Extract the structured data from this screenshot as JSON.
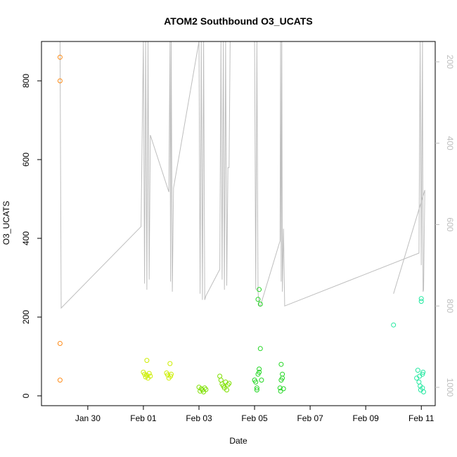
{
  "chart_data": {
    "type": "scatter",
    "title": "ATOM2 Southbound O3_UCATS",
    "xlabel": "Date",
    "ylabel": "O3_UCATS",
    "xlim": [
      "2017-01-28T08:00",
      "2017-02-11T12:00"
    ],
    "ylim": [
      -25,
      900
    ],
    "x_ticks": [
      {
        "date": "2017-01-30",
        "label": "Jan 30"
      },
      {
        "date": "2017-02-01",
        "label": "Feb 01"
      },
      {
        "date": "2017-02-03",
        "label": "Feb 03"
      },
      {
        "date": "2017-02-05",
        "label": "Feb 05"
      },
      {
        "date": "2017-02-07",
        "label": "Feb 07"
      },
      {
        "date": "2017-02-09",
        "label": "Feb 09"
      },
      {
        "date": "2017-02-11",
        "label": "Feb 11"
      }
    ],
    "y_ticks": [
      0,
      200,
      400,
      600,
      800
    ],
    "right_axis": {
      "ticks": [
        200,
        400,
        600,
        800,
        1000
      ],
      "reversed": true,
      "color": "#bebebe",
      "range": [
        1045,
        150
      ]
    },
    "grid": false,
    "series": [
      {
        "color": "#ff8c1a",
        "points": [
          [
            "2017-01-29T00:00",
            860
          ],
          [
            "2017-01-29T00:00",
            800
          ],
          [
            "2017-01-29T00:00",
            133
          ],
          [
            "2017-01-29T00:00",
            40
          ]
        ]
      },
      {
        "color": "#ccee00",
        "points": [
          [
            "2017-02-01T00:00",
            60
          ],
          [
            "2017-02-01T01:00",
            55
          ],
          [
            "2017-02-01T02:00",
            48
          ],
          [
            "2017-02-01T03:00",
            90
          ],
          [
            "2017-02-01T03:00",
            52
          ],
          [
            "2017-02-01T04:00",
            45
          ],
          [
            "2017-02-01T05:00",
            57
          ],
          [
            "2017-02-01T06:00",
            50
          ],
          [
            "2017-02-01T20:00",
            58
          ],
          [
            "2017-02-01T21:00",
            53
          ],
          [
            "2017-02-01T22:00",
            45
          ],
          [
            "2017-02-01T23:00",
            82
          ],
          [
            "2017-02-01T23:30",
            50
          ],
          [
            "2017-02-02T00:00",
            55
          ]
        ]
      },
      {
        "color": "#7ee000",
        "points": [
          [
            "2017-02-03T00:00",
            22
          ],
          [
            "2017-02-03T01:00",
            12
          ],
          [
            "2017-02-03T02:00",
            18
          ],
          [
            "2017-02-03T03:00",
            15
          ],
          [
            "2017-02-03T04:00",
            10
          ],
          [
            "2017-02-03T05:00",
            20
          ],
          [
            "2017-02-03T06:00",
            16
          ],
          [
            "2017-02-03T18:00",
            50
          ],
          [
            "2017-02-03T19:00",
            40
          ],
          [
            "2017-02-03T20:00",
            30
          ],
          [
            "2017-02-03T21:00",
            25
          ],
          [
            "2017-02-03T22:00",
            20
          ],
          [
            "2017-02-03T23:00",
            35
          ],
          [
            "2017-02-04T00:00",
            15
          ],
          [
            "2017-02-04T01:00",
            28
          ],
          [
            "2017-02-04T02:00",
            32
          ]
        ]
      },
      {
        "color": "#22d622",
        "points": [
          [
            "2017-02-05T00:00",
            40
          ],
          [
            "2017-02-05T01:00",
            35
          ],
          [
            "2017-02-05T02:00",
            20
          ],
          [
            "2017-02-05T03:00",
            55
          ],
          [
            "2017-02-05T04:00",
            60
          ],
          [
            "2017-02-05T04:00",
            270
          ],
          [
            "2017-02-05T03:00",
            245
          ],
          [
            "2017-02-05T05:00",
            233
          ],
          [
            "2017-02-05T05:00",
            120
          ],
          [
            "2017-02-05T04:00",
            68
          ],
          [
            "2017-02-05T06:00",
            40
          ],
          [
            "2017-02-05T02:00",
            15
          ],
          [
            "2017-02-05T22:00",
            20
          ],
          [
            "2017-02-05T23:00",
            40
          ],
          [
            "2017-02-05T23:00",
            80
          ],
          [
            "2017-02-06T00:00",
            55
          ],
          [
            "2017-02-06T00:00",
            45
          ],
          [
            "2017-02-06T01:00",
            18
          ],
          [
            "2017-02-05T22:30",
            12
          ]
        ]
      },
      {
        "color": "#22e8a0",
        "points": [
          [
            "2017-02-10T00:00",
            180
          ],
          [
            "2017-02-10T20:00",
            45
          ],
          [
            "2017-02-10T21:00",
            65
          ],
          [
            "2017-02-10T22:00",
            35
          ],
          [
            "2017-02-10T22:30",
            50
          ],
          [
            "2017-02-10T23:00",
            25
          ],
          [
            "2017-02-11T00:00",
            240
          ],
          [
            "2017-02-11T00:00",
            247
          ],
          [
            "2017-02-11T01:00",
            55
          ],
          [
            "2017-02-11T01:00",
            20
          ],
          [
            "2017-02-11T01:30",
            60
          ],
          [
            "2017-02-11T02:00",
            10
          ],
          [
            "2017-02-10T23:30",
            15
          ]
        ]
      }
    ],
    "altitude_trace": {
      "color": "#bebebe",
      "points": [
        [
          "2017-01-29T00:00",
          150
        ],
        [
          "2017-01-29T01:00",
          805
        ],
        [
          "2017-01-31T22:00",
          605
        ],
        [
          "2017-02-01T00:00",
          150
        ],
        [
          "2017-02-01T01:00",
          745
        ],
        [
          "2017-02-01T02:00",
          150
        ],
        [
          "2017-02-01T03:00",
          760
        ],
        [
          "2017-02-01T04:00",
          150
        ],
        [
          "2017-02-01T05:00",
          735
        ],
        [
          "2017-02-01T06:00",
          380
        ],
        [
          "2017-02-01T22:00",
          520
        ],
        [
          "2017-02-01T23:00",
          150
        ],
        [
          "2017-02-01T23:30",
          740
        ],
        [
          "2017-02-02T00:00",
          150
        ],
        [
          "2017-02-02T01:00",
          765
        ],
        [
          "2017-02-02T02:00",
          510
        ],
        [
          "2017-02-03T00:00",
          150
        ],
        [
          "2017-02-03T01:00",
          770
        ],
        [
          "2017-02-03T02:00",
          150
        ],
        [
          "2017-02-03T03:00",
          785
        ],
        [
          "2017-02-03T04:00",
          150
        ],
        [
          "2017-02-03T05:00",
          785
        ],
        [
          "2017-02-03T06:00",
          775
        ],
        [
          "2017-02-03T18:00",
          710
        ],
        [
          "2017-02-03T19:00",
          150
        ],
        [
          "2017-02-03T20:00",
          735
        ],
        [
          "2017-02-03T21:00",
          150
        ],
        [
          "2017-02-03T22:00",
          760
        ],
        [
          "2017-02-03T23:00",
          150
        ],
        [
          "2017-02-04T00:00",
          750
        ],
        [
          "2017-02-04T01:00",
          460
        ],
        [
          "2017-02-04T02:00",
          460
        ],
        [
          "2017-02-04T03:00",
          120
        ],
        [
          "2017-02-05T00:00",
          150
        ],
        [
          "2017-02-05T01:00",
          760
        ],
        [
          "2017-02-05T02:00",
          150
        ],
        [
          "2017-02-05T03:00",
          765
        ],
        [
          "2017-02-05T04:00",
          800
        ],
        [
          "2017-02-05T05:00",
          800
        ],
        [
          "2017-02-05T22:00",
          640
        ],
        [
          "2017-02-05T22:30",
          150
        ],
        [
          "2017-02-05T23:00",
          740
        ],
        [
          "2017-02-05T23:30",
          150
        ],
        [
          "2017-02-06T00:00",
          765
        ],
        [
          "2017-02-06T01:00",
          610
        ],
        [
          "2017-02-06T02:00",
          800
        ],
        [
          "2017-02-10T22:00",
          670
        ],
        [
          "2017-02-10T23:00",
          150
        ],
        [
          "2017-02-11T00:00",
          700
        ],
        [
          "2017-02-11T01:00",
          150
        ],
        [
          "2017-02-11T01:30",
          765
        ],
        [
          "2017-02-11T02:00",
          760
        ],
        [
          "2017-02-11T03:00",
          515
        ],
        [
          "2017-02-10T00:00",
          770
        ]
      ]
    }
  }
}
